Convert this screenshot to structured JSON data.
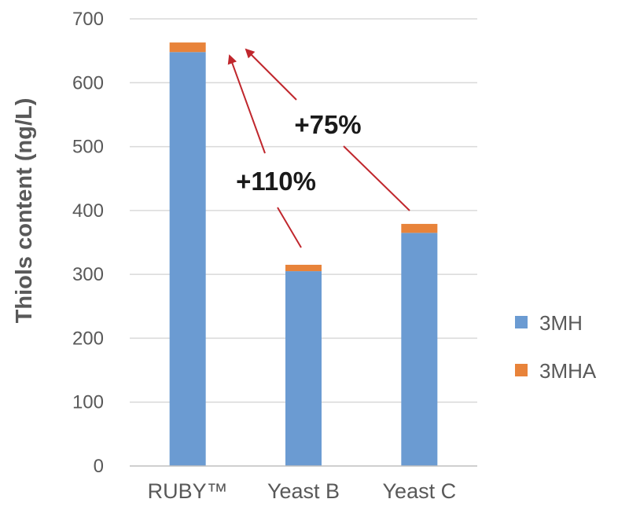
{
  "chart_data": {
    "type": "bar",
    "stacked": true,
    "categories": [
      "RUBY™",
      "Yeast B",
      "Yeast C"
    ],
    "series": [
      {
        "name": "3MH",
        "values": [
          648,
          305,
          365
        ],
        "color": "#6b9bd2"
      },
      {
        "name": "3MHA",
        "values": [
          15,
          10,
          14
        ],
        "color": "#e8833a"
      }
    ],
    "title": "",
    "xlabel": "",
    "ylabel": "Thiols content (ng/L)",
    "ylim": [
      0,
      700
    ],
    "yticks": [
      0,
      100,
      200,
      300,
      400,
      500,
      600,
      700
    ],
    "grid": true,
    "legend": "right",
    "annotations": [
      {
        "text": "+110%",
        "from": "Yeast B",
        "to": "RUBY™",
        "color": "#c0272d"
      },
      {
        "text": "+75%",
        "from": "Yeast C",
        "to": "RUBY™",
        "color": "#c0272d"
      }
    ]
  }
}
